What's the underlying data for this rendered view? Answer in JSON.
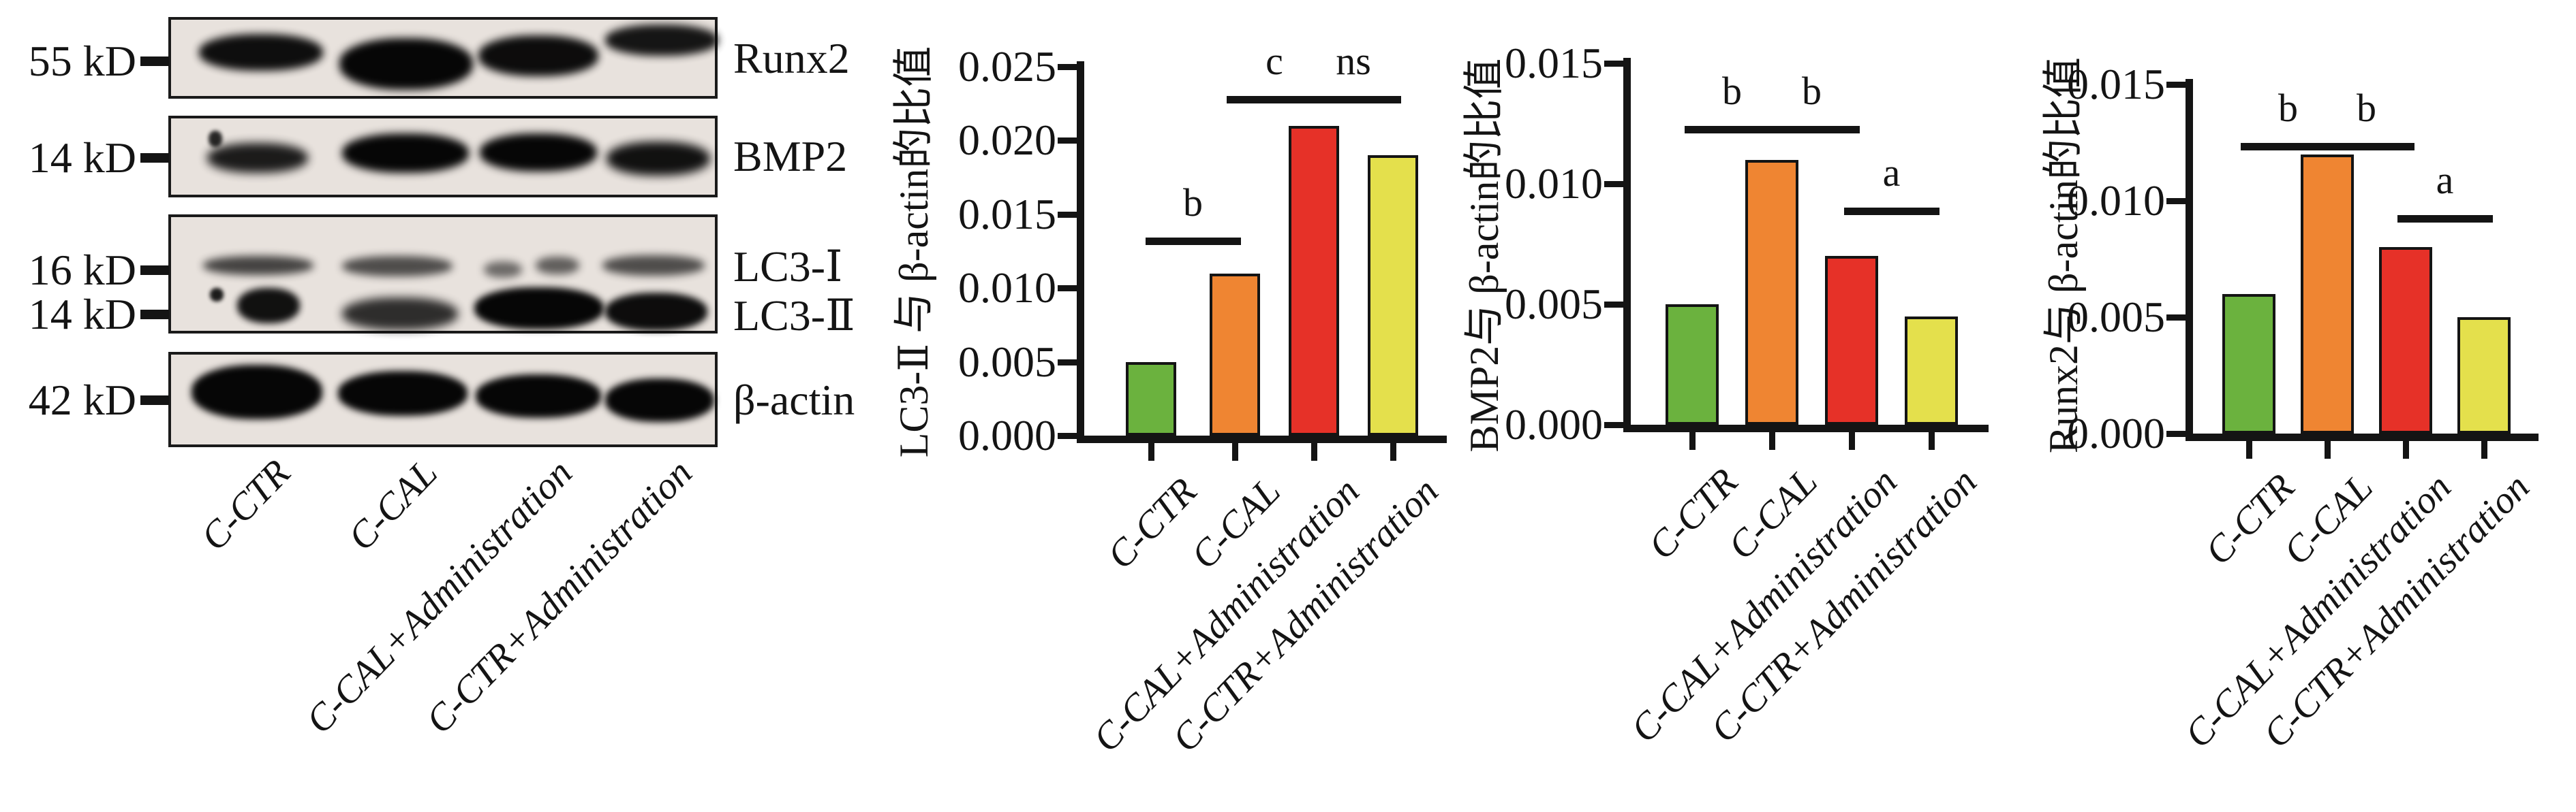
{
  "western_blot": {
    "rows": [
      {
        "mw": "55 kD",
        "protein": "Runx2"
      },
      {
        "mw": "14 kD",
        "protein": "BMP2"
      },
      {
        "mw": "16 kD",
        "protein": "LC3-Ⅰ"
      },
      {
        "mw": "14 kD",
        "protein": "LC3-Ⅱ"
      },
      {
        "mw": "42 kD",
        "protein": "β-actin"
      }
    ],
    "lane_labels": [
      "C-CTR",
      "C-CAL",
      "C-CAL+Administration",
      "C-CTR+Administration"
    ]
  },
  "chart_data": [
    {
      "type": "bar",
      "title": "",
      "ylabel": "LC3-Ⅱ 与 β-actin的比值",
      "xlabel": "",
      "categories": [
        "C-CTR",
        "C-CAL",
        "C-CAL+Administration",
        "C-CTR+Administration"
      ],
      "values": [
        0.005,
        0.011,
        0.021,
        0.019
      ],
      "bar_colors": [
        "#6BB23E",
        "#EF8532",
        "#E63128",
        "#E4E04C"
      ],
      "ylim": [
        0,
        0.025
      ],
      "yticks": [
        "0.000",
        "0.005",
        "0.010",
        "0.015",
        "0.020",
        "0.025"
      ],
      "grid": false,
      "legend": "none",
      "significance": [
        {
          "label": "b",
          "pair": [
            0,
            1
          ],
          "value": 0.0134
        },
        {
          "label": "c",
          "pair": [
            1,
            2
          ],
          "value": 0.023
        },
        {
          "label": "ns",
          "pair": [
            2,
            3
          ],
          "value": 0.023
        }
      ]
    },
    {
      "type": "bar",
      "title": "",
      "ylabel": "BMP2与 β-actin的比值",
      "xlabel": "",
      "categories": [
        "C-CTR",
        "C-CAL",
        "C-CAL+Administration",
        "C-CTR+Administration"
      ],
      "values": [
        0.005,
        0.011,
        0.007,
        0.0045
      ],
      "bar_colors": [
        "#6BB23E",
        "#EF8532",
        "#E63128",
        "#E4E04C"
      ],
      "ylim": [
        0,
        0.015
      ],
      "yticks": [
        "0.000",
        "0.005",
        "0.010",
        "0.015"
      ],
      "grid": false,
      "legend": "none",
      "significance": [
        {
          "label": "b",
          "pair": [
            0,
            1
          ],
          "value": 0.0124
        },
        {
          "label": "b",
          "pair": [
            1,
            2
          ],
          "value": 0.0124
        },
        {
          "label": "a",
          "pair": [
            2,
            3
          ],
          "value": 0.009
        }
      ]
    },
    {
      "type": "bar",
      "title": "",
      "ylabel": "Runx2与 β-actin的比值",
      "xlabel": "",
      "categories": [
        "C-CTR",
        "C-CAL",
        "C-CAL+Administration",
        "C-CTR+Administration"
      ],
      "values": [
        0.006,
        0.012,
        0.008,
        0.005
      ],
      "bar_colors": [
        "#6BB23E",
        "#EF8532",
        "#E63128",
        "#E4E04C"
      ],
      "ylim": [
        0,
        0.015
      ],
      "yticks": [
        "0.000",
        "0.005",
        "0.010",
        "0.015"
      ],
      "grid": false,
      "legend": "none",
      "significance": [
        {
          "label": "b",
          "pair": [
            0,
            1
          ],
          "value": 0.0125
        },
        {
          "label": "b",
          "pair": [
            1,
            2
          ],
          "value": 0.0125
        },
        {
          "label": "a",
          "pair": [
            2,
            3
          ],
          "value": 0.0094
        }
      ]
    }
  ]
}
